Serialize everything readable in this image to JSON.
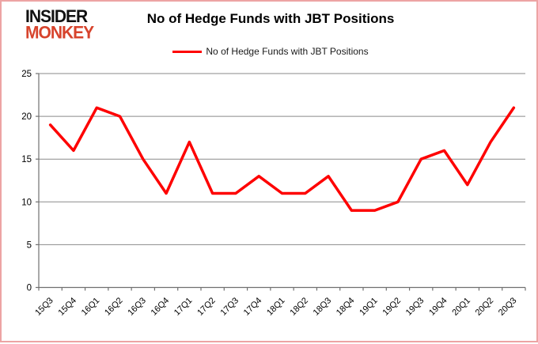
{
  "logo": {
    "line1": "INSIDER",
    "line2": "MONKEY"
  },
  "title": "No of Hedge Funds with JBT Positions",
  "legend": {
    "label": "No of Hedge Funds with JBT Positions"
  },
  "colors": {
    "line_red": "#fe0000",
    "logo_red": "#d7432c",
    "border_pink": "#eda4a4",
    "grid_gray": "#8a8a8a",
    "axis_gray": "#707070",
    "text_black": "#000000"
  },
  "chart_data": {
    "type": "line",
    "title": "No of Hedge Funds with JBT Positions",
    "categories": [
      "15Q3",
      "15Q4",
      "16Q1",
      "16Q2",
      "16Q3",
      "16Q4",
      "17Q1",
      "17Q2",
      "17Q3",
      "17Q4",
      "18Q1",
      "18Q2",
      "18Q3",
      "18Q4",
      "19Q1",
      "19Q2",
      "19Q3",
      "19Q4",
      "20Q1",
      "20Q2",
      "20Q3"
    ],
    "series": [
      {
        "name": "No of Hedge Funds with JBT Positions",
        "color": "#fe0000",
        "values": [
          19,
          16,
          21,
          20,
          15,
          11,
          17,
          11,
          11,
          13,
          11,
          11,
          13,
          9,
          9,
          10,
          15,
          16,
          12,
          17,
          21
        ]
      }
    ],
    "xlabel": "",
    "ylabel": "",
    "ylim": [
      0,
      25
    ],
    "yticks": [
      0,
      5,
      10,
      15,
      20,
      25
    ],
    "grid": true,
    "legend_position": "top-center"
  }
}
